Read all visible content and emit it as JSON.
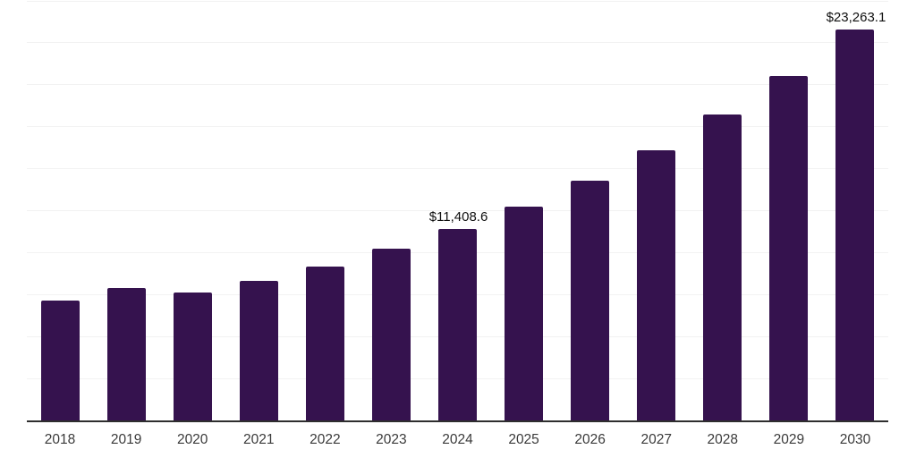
{
  "chart_data": {
    "type": "bar",
    "title": "",
    "xlabel": "",
    "ylabel": "",
    "categories": [
      "2018",
      "2019",
      "2020",
      "2021",
      "2022",
      "2023",
      "2024",
      "2025",
      "2026",
      "2027",
      "2028",
      "2029",
      "2030"
    ],
    "values": [
      7130,
      7905,
      7620,
      8300,
      9165,
      10230,
      11408.6,
      12740,
      14260,
      16100,
      18200,
      20480,
      23263.1
    ],
    "data_labels": [
      "",
      "",
      "",
      "",
      "",
      "",
      "$11,408.6",
      "",
      "",
      "",
      "",
      "",
      "$23,263.1"
    ],
    "ylim": [
      0,
      25000
    ],
    "gridline_interval": 2500,
    "grid": "horizontal-only",
    "legend": "none",
    "y_axis_labels": "none",
    "bar_color": "#35124E",
    "gridline_color": "#f2f2f2",
    "axis_line_color": "#2e2e2e",
    "tick_label_color": "#3a3a3a",
    "data_label_color": "#0f0f0f",
    "background_color": "#ffffff"
  }
}
